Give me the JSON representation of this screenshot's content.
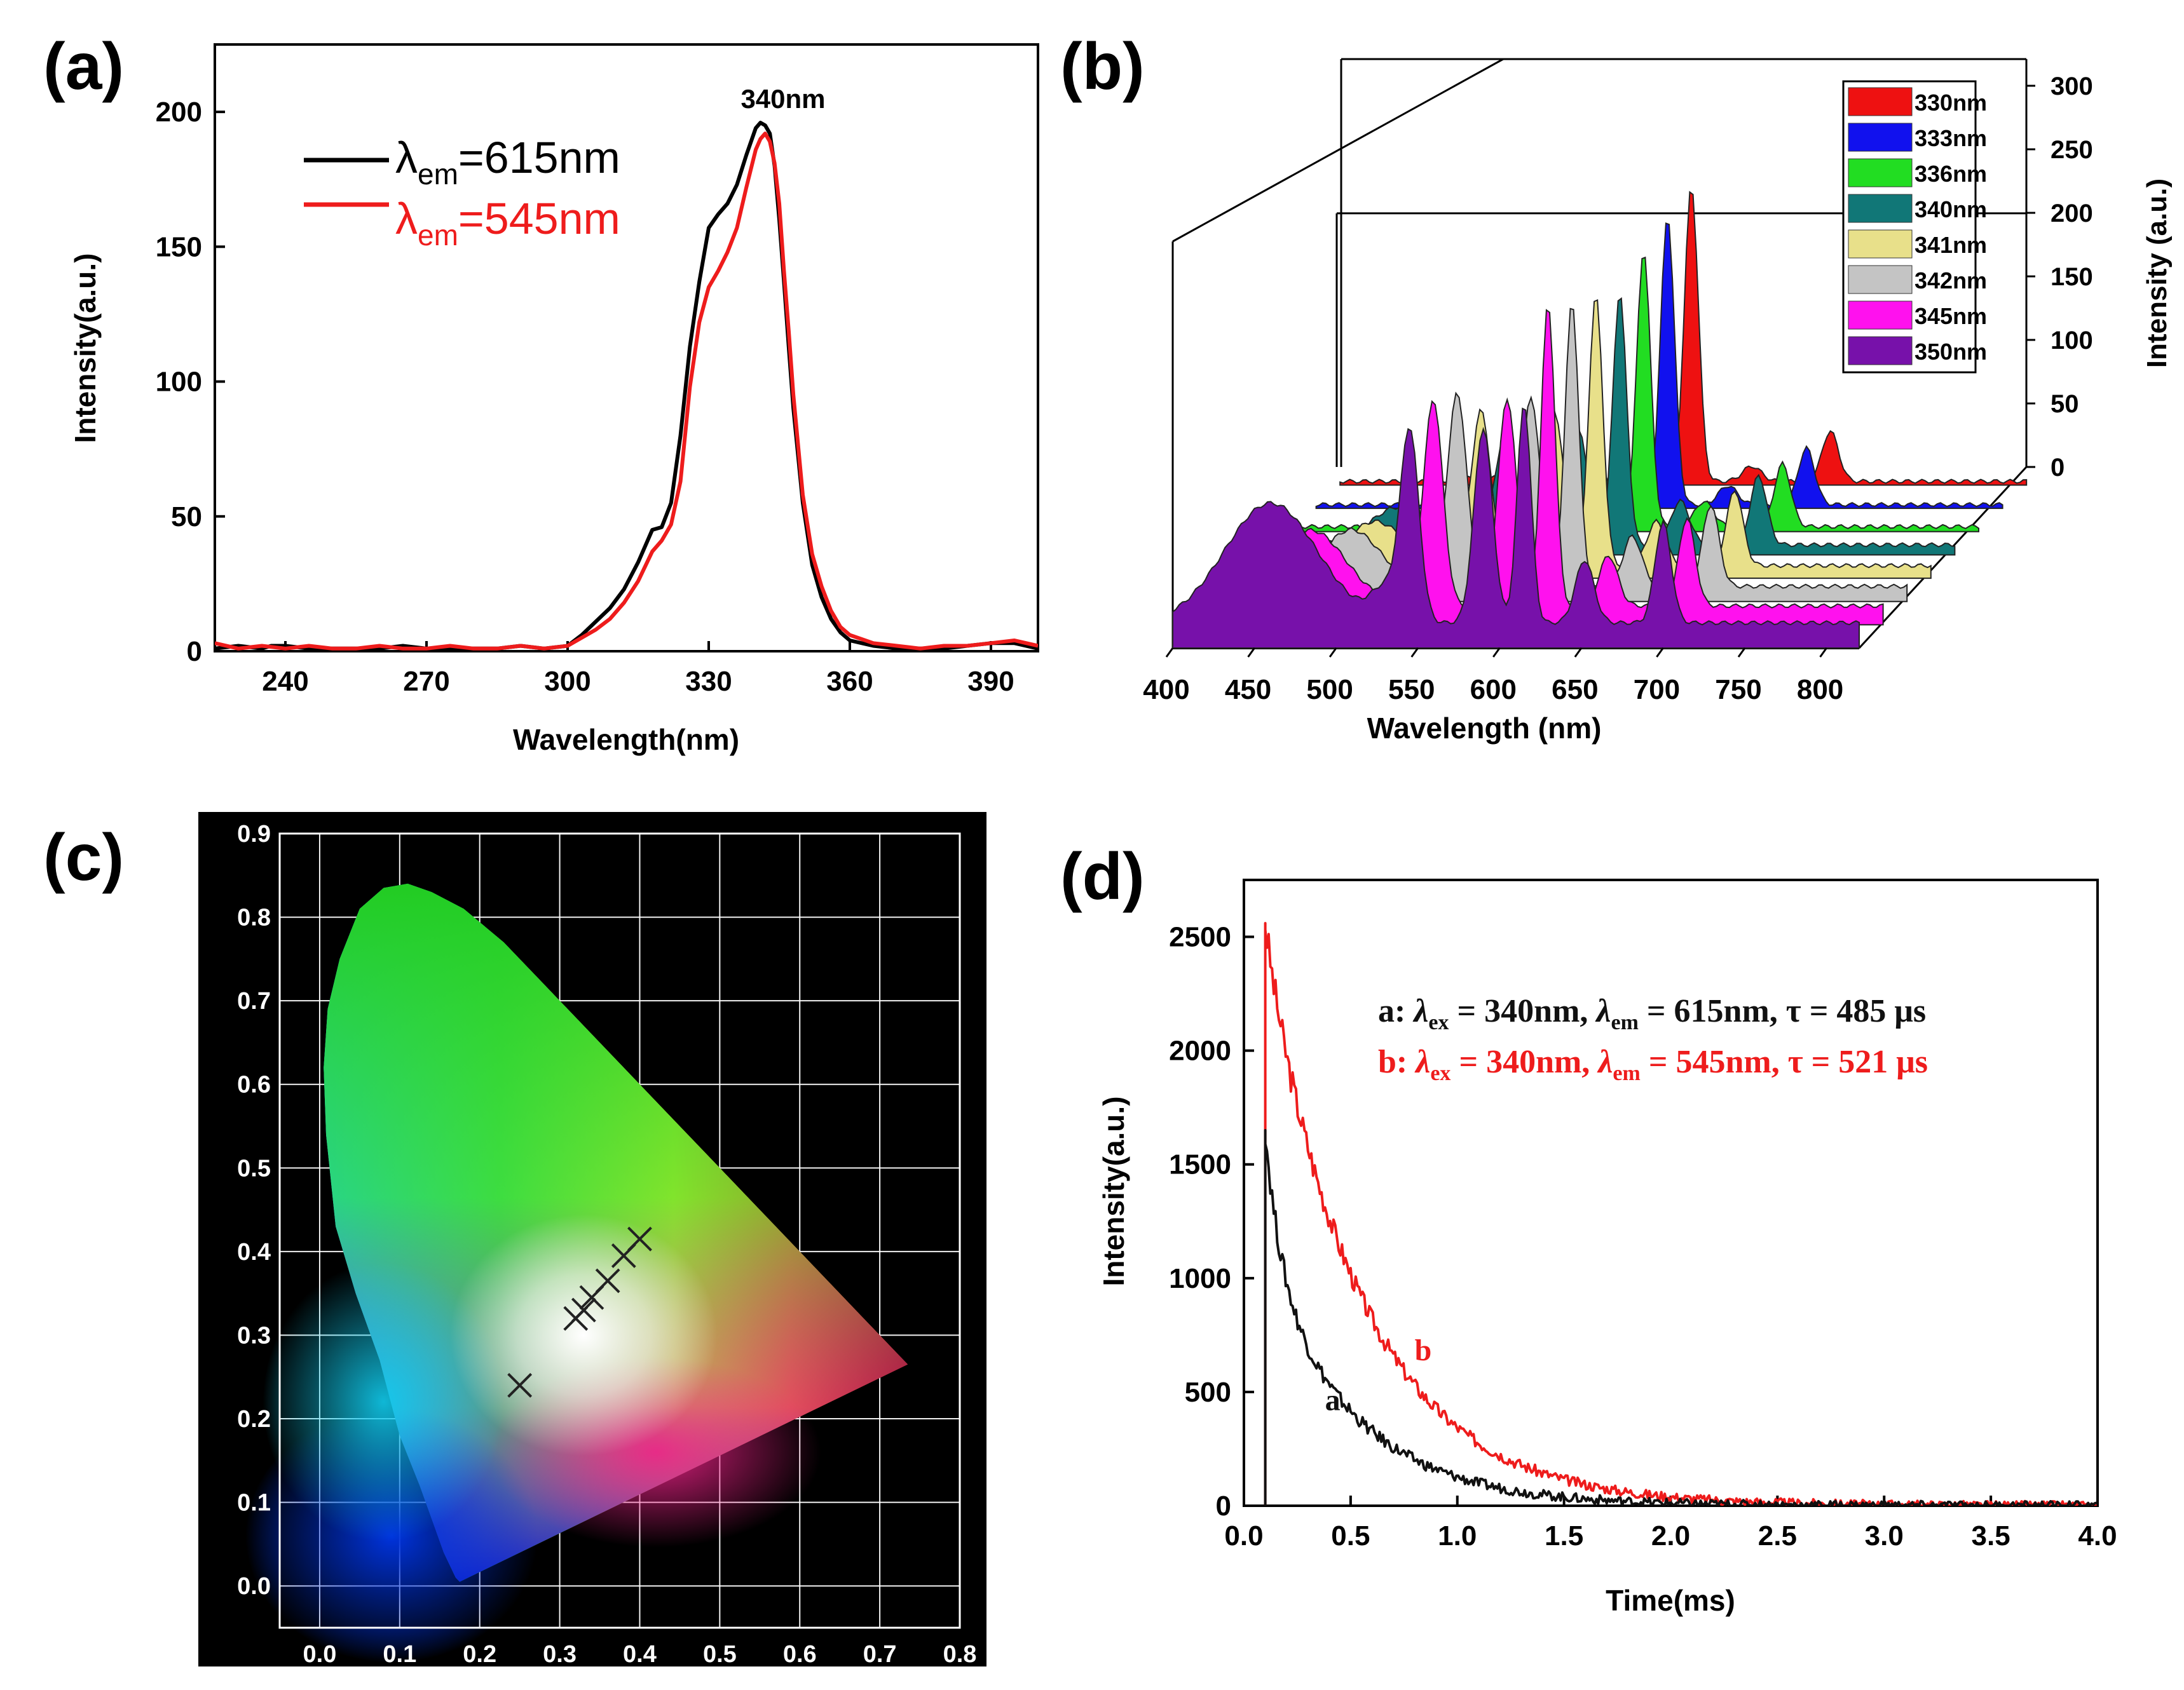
{
  "colors": {
    "black": "#000000",
    "red": "#ee1c1c",
    "grid_white": "#ffffff",
    "cie_background": "#000000"
  },
  "panel_labels": {
    "a": "(a)",
    "b": "(b)",
    "c": "(c)",
    "d": "(d)"
  },
  "chart_data": [
    {
      "id": "a",
      "type": "line",
      "title": "",
      "xlabel": "Wavelength(nm)",
      "ylabel": "Intensity(a.u.)",
      "xlim": [
        225,
        400
      ],
      "ylim": [
        0,
        225
      ],
      "xticks": [
        240,
        270,
        300,
        330,
        360,
        390
      ],
      "yticks": [
        0,
        50,
        100,
        150,
        200
      ],
      "annotation": "340nm",
      "legend": {
        "position": "top-left",
        "entries": [
          {
            "symbol": "λ",
            "sub": "em",
            "text": "=615nm",
            "color": "#000000"
          },
          {
            "symbol": "λ",
            "sub": "em",
            "text": "=545nm",
            "color": "#ee1c1c"
          }
        ]
      },
      "series": [
        {
          "name": "λem=615nm",
          "color": "#000000",
          "x": [
            225,
            230,
            235,
            237,
            240,
            245,
            250,
            255,
            260,
            265,
            270,
            275,
            280,
            285,
            290,
            295,
            300,
            303,
            306,
            309,
            312,
            315,
            318,
            320,
            322,
            324,
            326,
            328,
            330,
            332,
            334,
            336,
            338,
            340,
            341,
            342,
            343,
            344,
            345,
            346,
            347,
            348,
            350,
            352,
            354,
            356,
            358,
            360,
            365,
            370,
            375,
            380,
            385,
            390,
            395,
            400
          ],
          "y": [
            1,
            2,
            1,
            2,
            2,
            1,
            1,
            1,
            1,
            2,
            1,
            1,
            1,
            1,
            2,
            1,
            2,
            6,
            11,
            16,
            23,
            33,
            45,
            46,
            55,
            80,
            113,
            137,
            157,
            162,
            166,
            173,
            184,
            194,
            196,
            195,
            192,
            180,
            160,
            137,
            113,
            90,
            55,
            32,
            20,
            12,
            7,
            4,
            2,
            1,
            1,
            1,
            2,
            3,
            3,
            1
          ]
        },
        {
          "name": "λem=545nm",
          "color": "#ee1c1c",
          "x": [
            225,
            230,
            235,
            240,
            245,
            250,
            255,
            260,
            265,
            270,
            275,
            280,
            285,
            290,
            295,
            300,
            303,
            306,
            309,
            312,
            315,
            318,
            320,
            322,
            324,
            326,
            328,
            330,
            332,
            334,
            336,
            338,
            340,
            341,
            342,
            343,
            344,
            345,
            346,
            347,
            348,
            350,
            352,
            354,
            356,
            358,
            360,
            365,
            370,
            375,
            380,
            385,
            390,
            395,
            400
          ],
          "y": [
            3,
            1,
            2,
            1,
            2,
            1,
            1,
            2,
            1,
            1,
            2,
            1,
            1,
            2,
            1,
            2,
            5,
            8,
            12,
            18,
            26,
            37,
            41,
            47,
            63,
            98,
            122,
            135,
            141,
            148,
            157,
            172,
            186,
            190,
            192,
            189,
            181,
            166,
            141,
            119,
            95,
            58,
            36,
            24,
            15,
            9,
            6,
            3,
            2,
            1,
            2,
            2,
            3,
            4,
            2
          ]
        }
      ]
    },
    {
      "id": "b",
      "type": "area",
      "title": "",
      "xlabel": "Wavelength (nm)",
      "ylabel": "Intensity (a.u.)",
      "xlim": [
        400,
        820
      ],
      "xticks": [
        400,
        450,
        500,
        550,
        600,
        650,
        700,
        750,
        800
      ],
      "zticks": [
        0,
        50,
        100,
        150,
        200,
        250,
        300
      ],
      "zlim": [
        0,
        300
      ],
      "legend": {
        "position": "top-right"
      },
      "series": [
        {
          "name": "330nm",
          "color": "#ee1111",
          "peaks": [
            [
              490,
              4,
              18
            ],
            [
              530,
              6,
              12
            ],
            [
              545,
              12,
              10
            ],
            [
              590,
              20,
              9
            ],
            [
              615,
              235,
              6
            ],
            [
              652,
              12,
              8
            ],
            [
              700,
              40,
              7
            ]
          ],
          "baseline": 3
        },
        {
          "name": "333nm",
          "color": "#1111ee",
          "peaks": [
            [
              490,
              5,
              18
            ],
            [
              530,
              8,
              12
            ],
            [
              545,
              15,
              10
            ],
            [
              590,
              30,
              9
            ],
            [
              615,
              230,
              6
            ],
            [
              652,
              15,
              8
            ],
            [
              700,
              45,
              7
            ]
          ],
          "baseline": 3
        },
        {
          "name": "336nm",
          "color": "#22dd22",
          "peaks": [
            [
              490,
              6,
              18
            ],
            [
              530,
              10,
              12
            ],
            [
              545,
              25,
              10
            ],
            [
              590,
              40,
              9
            ],
            [
              615,
              220,
              6
            ],
            [
              652,
              20,
              8
            ],
            [
              700,
              50,
              7
            ]
          ],
          "baseline": 4
        },
        {
          "name": "340nm",
          "color": "#117777",
          "peaks": [
            [
              480,
              30,
              25
            ],
            [
              530,
              14,
              12
            ],
            [
              545,
              85,
              8
            ],
            [
              590,
              90,
              8
            ],
            [
              615,
              200,
              6
            ],
            [
              652,
              35,
              8
            ],
            [
              700,
              55,
              7
            ]
          ],
          "baseline": 8
        },
        {
          "name": "341nm",
          "color": "#e8e08a",
          "peaks": [
            [
              480,
              35,
              25
            ],
            [
              530,
              16,
              12
            ],
            [
              545,
              120,
              8
            ],
            [
              590,
              120,
              8
            ],
            [
              615,
              215,
              6
            ],
            [
              652,
              35,
              8
            ],
            [
              700,
              60,
              7
            ]
          ],
          "baseline": 10
        },
        {
          "name": "342nm",
          "color": "#c4c4c4",
          "peaks": [
            [
              480,
              45,
              25
            ],
            [
              530,
              18,
              12
            ],
            [
              545,
              150,
              8
            ],
            [
              590,
              150,
              8
            ],
            [
              615,
              225,
              6
            ],
            [
              652,
              40,
              8
            ],
            [
              700,
              65,
              7
            ]
          ],
          "baseline": 12
        },
        {
          "name": "345nm",
          "color": "#ff11ee",
          "peaks": [
            [
              470,
              60,
              30
            ],
            [
              530,
              20,
              12
            ],
            [
              545,
              160,
              8
            ],
            [
              590,
              165,
              8
            ],
            [
              615,
              240,
              6
            ],
            [
              652,
              40,
              8
            ],
            [
              700,
              70,
              7
            ]
          ],
          "baseline": 15
        },
        {
          "name": "350nm",
          "color": "#7711aa",
          "peaks": [
            [
              460,
              95,
              40
            ],
            [
              530,
              25,
              12
            ],
            [
              545,
              150,
              8
            ],
            [
              590,
              155,
              8
            ],
            [
              615,
              175,
              6
            ],
            [
              652,
              50,
              8
            ],
            [
              700,
              80,
              7
            ]
          ],
          "baseline": 20
        }
      ]
    },
    {
      "id": "c",
      "type": "scatter",
      "title": "",
      "xlabel": "",
      "ylabel": "",
      "xlim": [
        -0.05,
        0.8
      ],
      "ylim": [
        -0.05,
        0.9
      ],
      "xticks": [
        "0.0",
        "0.1",
        "0.2",
        "0.3",
        "0.4",
        "0.5",
        "0.6",
        "0.7",
        "0.8"
      ],
      "yticks": [
        "0.0",
        "0.1",
        "0.2",
        "0.3",
        "0.4",
        "0.5",
        "0.6",
        "0.7",
        "0.8",
        "0.9"
      ],
      "grid": true,
      "points": [
        [
          0.25,
          0.24
        ],
        [
          0.32,
          0.32
        ],
        [
          0.33,
          0.33
        ],
        [
          0.34,
          0.345
        ],
        [
          0.36,
          0.365
        ],
        [
          0.38,
          0.395
        ],
        [
          0.4,
          0.415
        ]
      ],
      "marker": "x"
    },
    {
      "id": "d",
      "type": "line",
      "title": "",
      "xlabel": "Time(ms)",
      "ylabel": "Intensity(a.u.)",
      "xlim": [
        0,
        4.0
      ],
      "ylim": [
        0,
        2750
      ],
      "xticks": [
        "0.0",
        "0.5",
        "1.0",
        "1.5",
        "2.0",
        "2.5",
        "3.0",
        "3.5",
        "4.0"
      ],
      "yticks": [
        0,
        500,
        1000,
        1500,
        2000,
        2500
      ],
      "legend_lines": [
        {
          "prefix": "a: ",
          "l1": "λ",
          "s1": "ex",
          "t1": " = 340nm, ",
          "l2": "λ",
          "s2": "em",
          "t2": " = 615nm, τ = 485 μs",
          "color": "#111111"
        },
        {
          "prefix": "b: ",
          "l1": "λ",
          "s1": "ex",
          "t1": " = 340nm, ",
          "l2": "λ",
          "s2": "em",
          "t2": " = 545nm, τ = 521 μs",
          "color": "#ee1c1c"
        }
      ],
      "curve_labels": [
        {
          "text": "a",
          "x": 0.38,
          "y": 420,
          "color": "#111111"
        },
        {
          "text": "b",
          "x": 0.8,
          "y": 640,
          "color": "#ee1c1c"
        }
      ],
      "series": [
        {
          "name": "a",
          "color": "#111111",
          "t0": 0.1,
          "peak": 1650,
          "tau": 0.42,
          "tau_fast": 0.07,
          "fast_frac": 0.35
        },
        {
          "name": "b",
          "color": "#ee1c1c",
          "t0": 0.1,
          "peak": 2560,
          "tau": 0.46,
          "tau_fast": 0.05,
          "fast_frac": 0.05
        }
      ]
    }
  ]
}
